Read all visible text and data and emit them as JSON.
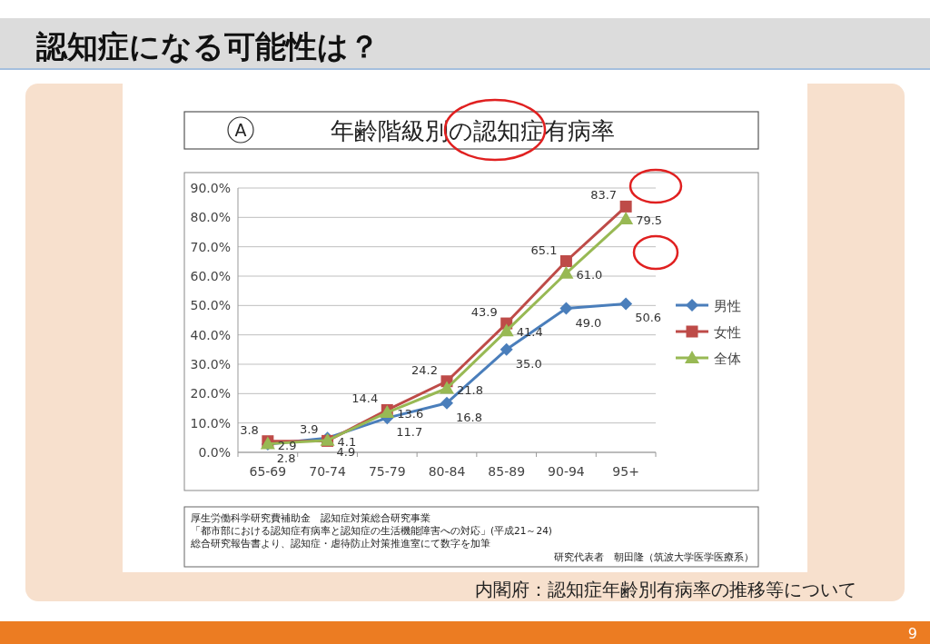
{
  "chart_data": {
    "type": "line",
    "title": "認知症になる可能性は？",
    "subtitle": "年齢階級別の認知症有病率",
    "categories": [
      "65-69",
      "70-74",
      "75-79",
      "80-84",
      "85-89",
      "90-94",
      "95+"
    ],
    "series": [
      {
        "name": "男性",
        "color": "#4a7ebb",
        "marker": "diamond",
        "values": [
          2.8,
          4.9,
          11.7,
          16.8,
          35.0,
          49.0,
          50.6
        ],
        "value_labels": [
          "2.8",
          "4.9",
          "11.7",
          "16.8",
          "35.0",
          "49.0",
          "50.6"
        ]
      },
      {
        "name": "女性",
        "color": "#be4b48",
        "marker": "square",
        "values": [
          3.8,
          3.9,
          14.4,
          24.2,
          43.9,
          65.1,
          83.7
        ],
        "value_labels": [
          "3.8",
          "3.9",
          "14.4",
          "24.2",
          "43.9",
          "65.1",
          "83.7"
        ]
      },
      {
        "name": "全体",
        "color": "#98b954",
        "marker": "triangle",
        "values": [
          2.9,
          4.1,
          13.6,
          21.8,
          41.4,
          61.0,
          79.5
        ],
        "value_labels": [
          "2.9",
          "4.1",
          "13.6",
          "21.8",
          "41.4",
          "61.0",
          "79.5"
        ]
      }
    ],
    "ylim": [
      0,
      90
    ],
    "yticks": [
      {
        "value": 0,
        "label": "0.0%"
      },
      {
        "value": 10,
        "label": "10.0%"
      },
      {
        "value": 20,
        "label": "20.0%"
      },
      {
        "value": 30,
        "label": "30.0%"
      },
      {
        "value": 40,
        "label": "40.0%"
      },
      {
        "value": 50,
        "label": "50.0%"
      },
      {
        "value": 60,
        "label": "60.0%"
      },
      {
        "value": 70,
        "label": "70.0%"
      },
      {
        "value": 80,
        "label": "80.0%"
      },
      {
        "value": 90,
        "label": "90.0%"
      }
    ],
    "grid": "y",
    "legend": "right",
    "line_style": "solid",
    "annotations": [
      "A",
      "厚生労働科学研究費補助金　認知症対策総合研究事業",
      "「都市部における認知症有病率と認知症の生活機能障害への対応」(平成21～24)",
      "総合研究報告書より、認知症・虐待防止対策推進室にて数字を加筆",
      "研究代表者　朝田隆（筑波大学医学医療系）",
      "内閣府：認知症年齢別有病率の推移等について",
      "9"
    ]
  }
}
